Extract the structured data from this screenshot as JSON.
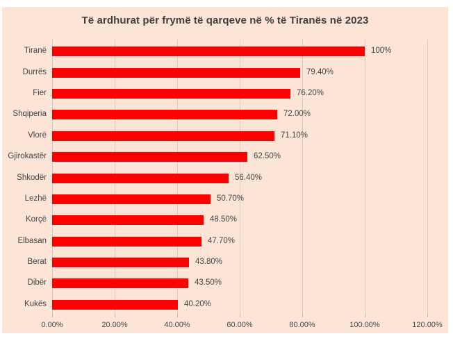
{
  "chart_data": {
    "type": "bar",
    "orientation": "horizontal",
    "title": "Të ardhurat për frymë të qarqeve në % të Tiranës në 2023",
    "categories": [
      "Tiranë",
      "Durrës",
      "Fier",
      "Shqiperia",
      "Vlorë",
      "Gjirokastër",
      "Shkodër",
      "Lezhë",
      "Korçë",
      "Elbasan",
      "Berat",
      "Dibër",
      "Kukës"
    ],
    "values": [
      100,
      79.4,
      76.2,
      72.0,
      71.1,
      62.5,
      56.4,
      50.7,
      48.5,
      47.7,
      43.8,
      43.5,
      40.2
    ],
    "data_labels": [
      "100%",
      "79.40%",
      "76.20%",
      "72.00%",
      "71.10%",
      "62.50%",
      "56.40%",
      "50.70%",
      "48.50%",
      "47.70%",
      "43.80%",
      "43.50%",
      "40.20%"
    ],
    "x_tick_labels": [
      "0.00%",
      "20.00%",
      "40.00%",
      "60.00%",
      "80.00%",
      "100.00%",
      "120.00%"
    ],
    "x_tick_values": [
      0,
      20,
      40,
      60,
      80,
      100,
      120
    ],
    "xlim": [
      0,
      120
    ],
    "grid": true,
    "legend": false,
    "colors": {
      "bar": "#ff0000",
      "plot_background": "#fce4d6",
      "page_background": "#ffffff",
      "title_text": "#3f3f3f",
      "label_text": "#454545",
      "gridline": "#d8cdc5"
    }
  }
}
